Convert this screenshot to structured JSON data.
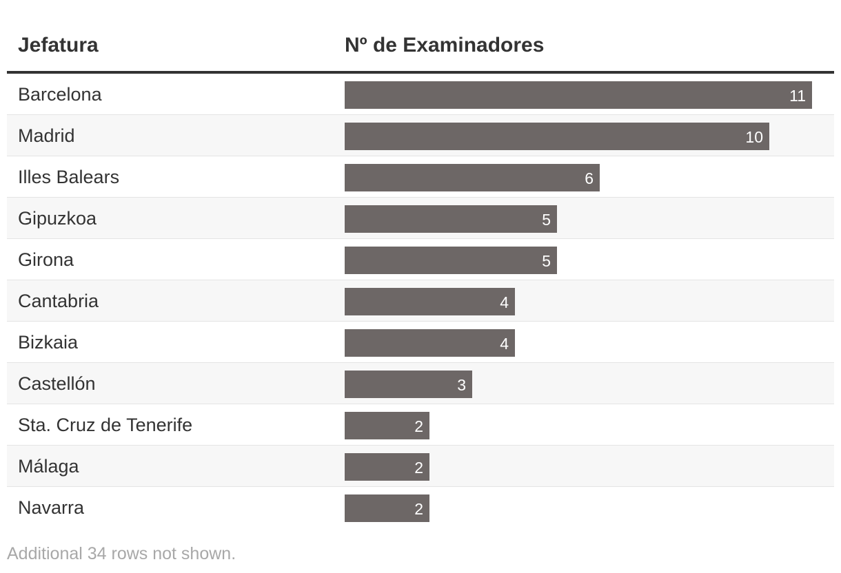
{
  "table": {
    "headers": {
      "name": "Jefatura",
      "value": "Nº de Examinadores"
    },
    "footnote": "Additional 34 rows not shown.",
    "colors": {
      "bar": "#6d6766",
      "bar_label": "#ffffff",
      "header_rule": "#333333",
      "alt_row": "#f7f7f7"
    }
  },
  "chart_data": {
    "type": "bar",
    "orientation": "horizontal",
    "title": "",
    "xlabel": "Nº de Examinadores",
    "ylabel": "Jefatura",
    "xlim": [
      0,
      11
    ],
    "grid": false,
    "categories": [
      "Barcelona",
      "Madrid",
      "Illes Balears",
      "Gipuzkoa",
      "Girona",
      "Cantabria",
      "Bizkaia",
      "Castellón",
      "Sta. Cruz de Tenerife",
      "Málaga",
      "Navarra"
    ],
    "values": [
      11,
      10,
      6,
      5,
      5,
      4,
      4,
      3,
      2,
      2,
      2
    ]
  }
}
